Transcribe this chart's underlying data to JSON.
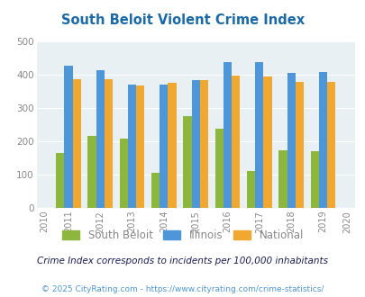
{
  "title": "South Beloit Violent Crime Index",
  "years": [
    2011,
    2012,
    2013,
    2014,
    2015,
    2016,
    2017,
    2018,
    2019
  ],
  "south_beloit": [
    165,
    217,
    207,
    105,
    275,
    237,
    110,
    172,
    170
  ],
  "illinois": [
    428,
    415,
    372,
    370,
    384,
    438,
    438,
    405,
    408
  ],
  "national": [
    387,
    387,
    367,
    375,
    383,
    397,
    394,
    379,
    379
  ],
  "colors": {
    "south_beloit": "#8db63c",
    "illinois": "#4d96d9",
    "national": "#f0a830"
  },
  "legend_labels": [
    "South Beloit",
    "Illinois",
    "National"
  ],
  "ylim": [
    0,
    500
  ],
  "yticks": [
    0,
    100,
    200,
    300,
    400,
    500
  ],
  "bg_color": "#e8f0f3",
  "subtitle": "Crime Index corresponds to incidents per 100,000 inhabitants",
  "footer": "© 2025 CityRating.com - https://www.cityrating.com/crime-statistics/",
  "title_color": "#1a6aaa",
  "subtitle_color": "#1a1a5a",
  "footer_color": "#4d96d9",
  "tick_color": "#888888",
  "bar_width": 0.26
}
